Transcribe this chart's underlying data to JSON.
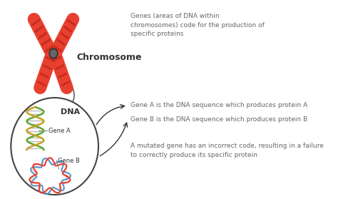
{
  "background_color": "#ffffff",
  "chromosome_color": "#e84030",
  "chromosome_stripe_color": "#c02818",
  "text_color": "#333333",
  "text_color_light": "#666666",
  "arrow_color": "#333333",
  "circle_color": "#444444",
  "label_chromosome": "Chromosome",
  "label_dna": "DNA",
  "label_gene_a": "Gene A",
  "label_gene_b": "Gene B",
  "annotation_top": "Genes (areas of DNA within\nchromosomes) code for the production of\nspecific proteins",
  "annotation_gene_a": "Gene A is the DNA sequence which produces protein A",
  "annotation_gene_b": "Gene B is the DNA sequence which produces protein B",
  "annotation_mutated": "A mutated gene has an incorrect code, resulting in a failure\nto correctly produce its specific protein",
  "dna_green": "#5ba832",
  "dna_yellow": "#c8a020",
  "dna_red": "#e84030",
  "dna_blue": "#5090c8",
  "dna_rung": "#aaaaaa"
}
